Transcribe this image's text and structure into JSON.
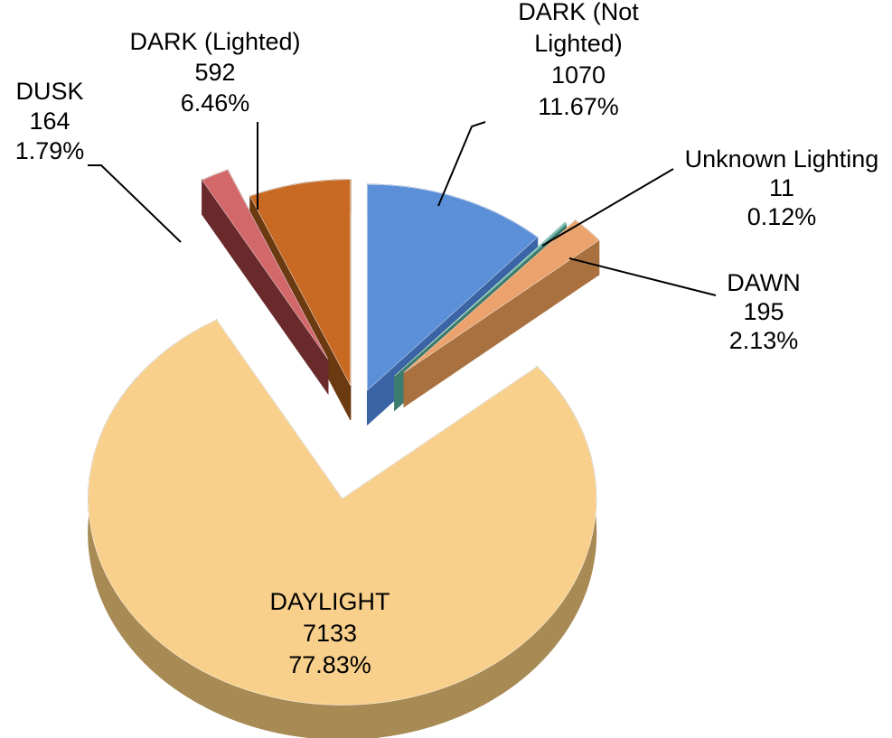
{
  "chart_data": {
    "type": "pie3d",
    "categories": [
      "DARK (Not\nLighted)",
      "Unknown  Lighting",
      "DAWN",
      "DAYLIGHT",
      "DUSK",
      "DARK (Lighted)"
    ],
    "values": [
      1070,
      11,
      195,
      7133,
      164,
      592
    ],
    "percentages": [
      "11.67%",
      "0.12%",
      "2.13%",
      "77.83%",
      "1.79%",
      "6.46%"
    ],
    "colors": [
      "#5b8fd8",
      "#5fb8a6",
      "#eba26c",
      "#f8d08c",
      "#d2686a",
      "#c86a24"
    ],
    "side_colors": [
      "#3b64a6",
      "#3a7d70",
      "#a9713f",
      "#a88a55",
      "#6a2a2c",
      "#6b3a10"
    ]
  }
}
